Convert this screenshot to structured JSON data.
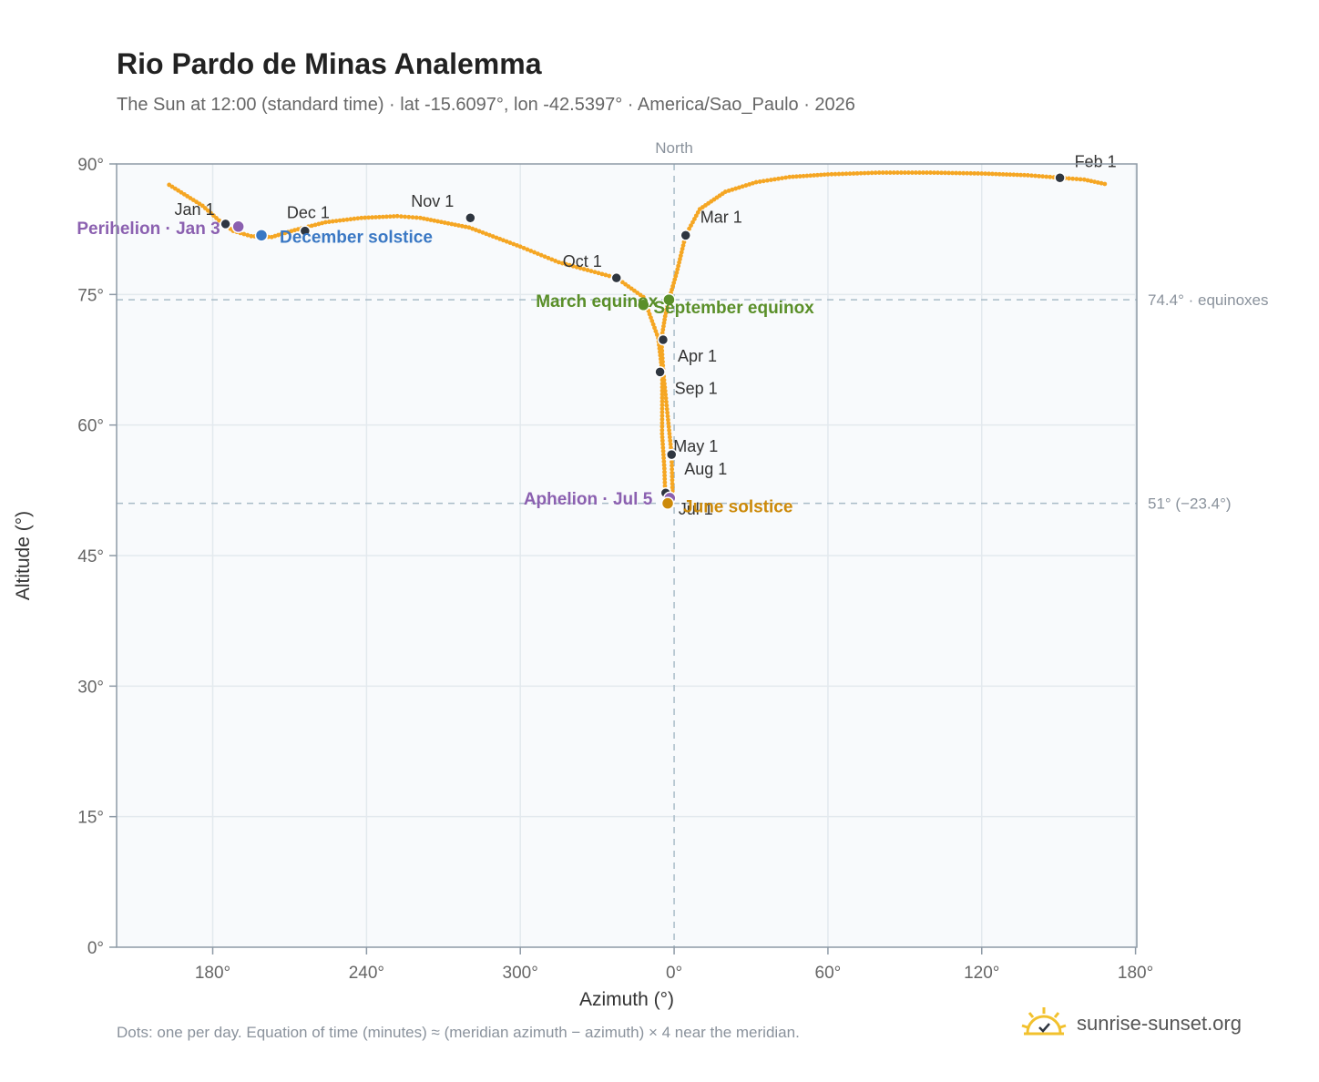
{
  "header": {
    "title": "Rio Pardo de Minas Analemma",
    "subtitle": "The Sun at 12:00 (standard time) · lat -15.6097°, lon -42.5397° · America/Sao_Paulo · 2026"
  },
  "footer": {
    "note": "Dots: one per day. Equation of time (minutes) ≈ (meridian azimuth − azimuth) × 4 near the meridian.",
    "brand": "sunrise-sunset.org"
  },
  "colors": {
    "curve": "#f5a623",
    "month_marker": "#2f3640",
    "equinox": "#5a8f29",
    "solstice_dec": "#3a78c4",
    "solstice_jun": "#cc8a0a",
    "apsis": "#8b60b0",
    "axis_text": "#666666",
    "ref_line": "#a9bcc8",
    "plot_bg": "#f8fafc"
  },
  "chart_data": {
    "type": "scatter",
    "title": "Rio Pardo de Minas Analemma",
    "xlabel": "Azimuth (°)",
    "ylabel": "Altitude (°)",
    "xlim": [
      142.5,
      180.5
    ],
    "ylim": [
      0,
      90
    ],
    "x_note": "horizontal axis runs through North: 142.5 → 180 (south) → 240 → 300 → 360/0 (north) → 60 → 120 → 180",
    "x_ticks": [
      {
        "value": 180,
        "label": "180°"
      },
      {
        "value": 240,
        "label": "240°"
      },
      {
        "value": 300,
        "label": "300°"
      },
      {
        "value": 360,
        "label": "0°"
      },
      {
        "value": 420,
        "label": "60°"
      },
      {
        "value": 480,
        "label": "120°"
      },
      {
        "value": 540,
        "label": "180°"
      }
    ],
    "y_ticks": [
      {
        "value": 0,
        "label": "0°"
      },
      {
        "value": 15,
        "label": "15°"
      },
      {
        "value": 30,
        "label": "30°"
      },
      {
        "value": 45,
        "label": "45°"
      },
      {
        "value": 60,
        "label": "60°"
      },
      {
        "value": 75,
        "label": "75°"
      },
      {
        "value": 90,
        "label": "90°"
      }
    ],
    "grid": true,
    "north_line": {
      "azimuth": 360,
      "label": "North"
    },
    "reference_lines": [
      {
        "altitude": 74.4,
        "label": "74.4° · equinoxes"
      },
      {
        "altitude": 51,
        "label": "51° (−23.4°)"
      }
    ],
    "daily_path": [
      {
        "x": 163.0,
        "y": 87.6
      },
      {
        "x": 176.0,
        "y": 85.2
      },
      {
        "x": 182.5,
        "y": 83.5
      },
      {
        "x": 188.0,
        "y": 82.3
      },
      {
        "x": 195.0,
        "y": 81.7
      },
      {
        "x": 203.0,
        "y": 81.6
      },
      {
        "x": 212.0,
        "y": 82.4
      },
      {
        "x": 224.0,
        "y": 83.3
      },
      {
        "x": 238.0,
        "y": 83.8
      },
      {
        "x": 252.0,
        "y": 84.0
      },
      {
        "x": 261.0,
        "y": 83.8
      },
      {
        "x": 280.0,
        "y": 82.7
      },
      {
        "x": 300.0,
        "y": 80.5
      },
      {
        "x": 315.0,
        "y": 78.7
      },
      {
        "x": 337.5,
        "y": 76.9
      },
      {
        "x": 348.0,
        "y": 74.7
      },
      {
        "x": 353.8,
        "y": 70.0
      },
      {
        "x": 355.4,
        "y": 66.0
      },
      {
        "x": 355.3,
        "y": 59.0
      },
      {
        "x": 356.2,
        "y": 55.0
      },
      {
        "x": 356.5,
        "y": 52.2
      },
      {
        "x": 357.6,
        "y": 51.4
      },
      {
        "x": 358.7,
        "y": 51.0
      },
      {
        "x": 359.4,
        "y": 52.0
      },
      {
        "x": 359.0,
        "y": 56.6
      },
      {
        "x": 357.5,
        "y": 61.0
      },
      {
        "x": 355.8,
        "y": 66.0
      },
      {
        "x": 355.0,
        "y": 69.8
      },
      {
        "x": 356.5,
        "y": 72.5
      },
      {
        "x": 358.0,
        "y": 74.4
      },
      {
        "x": 361.0,
        "y": 77.5
      },
      {
        "x": 364.5,
        "y": 81.8
      },
      {
        "x": 370.0,
        "y": 84.8
      },
      {
        "x": 380.0,
        "y": 86.8
      },
      {
        "x": 392.0,
        "y": 87.9
      },
      {
        "x": 405.0,
        "y": 88.5
      },
      {
        "x": 420.0,
        "y": 88.8
      },
      {
        "x": 440.0,
        "y": 89.0
      },
      {
        "x": 460.0,
        "y": 89.0
      },
      {
        "x": 480.0,
        "y": 88.9
      },
      {
        "x": 498.0,
        "y": 88.7
      },
      {
        "x": 511.0,
        "y": 88.4
      },
      {
        "x": 520.0,
        "y": 88.2
      },
      {
        "x": 528.0,
        "y": 87.7
      }
    ],
    "month_markers": [
      {
        "label": "Jan 1",
        "x": 185.0,
        "y": 83.1
      },
      {
        "label": "Feb 1",
        "x": 510.5,
        "y": 88.4
      },
      {
        "label": "Mar 1",
        "x": 364.5,
        "y": 81.8
      },
      {
        "label": "Apr 1",
        "x": 355.7,
        "y": 69.8
      },
      {
        "label": "May 1",
        "x": 359.0,
        "y": 56.6
      },
      {
        "label": "Jul 1",
        "x": 356.7,
        "y": 52.2
      },
      {
        "label": "Aug 1",
        "x": 359.0,
        "y": 56.6
      },
      {
        "label": "Sep 1",
        "x": 354.5,
        "y": 66.1
      },
      {
        "label": "Oct 1",
        "x": 337.5,
        "y": 76.9
      },
      {
        "label": "Nov 1",
        "x": 280.5,
        "y": 83.8
      },
      {
        "label": "Dec 1",
        "x": 216.0,
        "y": 82.3
      }
    ],
    "events": [
      {
        "label": "Perihelion · Jan 3",
        "x": 190.0,
        "y": 82.8,
        "kind": "apsis"
      },
      {
        "label": "December solstice",
        "x": 199.0,
        "y": 81.8,
        "kind": "solstice_dec"
      },
      {
        "label": "March equinox",
        "x": 348.0,
        "y": 73.8,
        "kind": "equinox"
      },
      {
        "label": "September equinox",
        "x": 358.0,
        "y": 74.4,
        "kind": "equinox"
      },
      {
        "label": "Aphelion · Jul 5",
        "x": 358.3,
        "y": 51.6,
        "kind": "apsis"
      },
      {
        "label": "June solstice",
        "x": 357.5,
        "y": 51.0,
        "kind": "solstice_jun"
      }
    ]
  }
}
